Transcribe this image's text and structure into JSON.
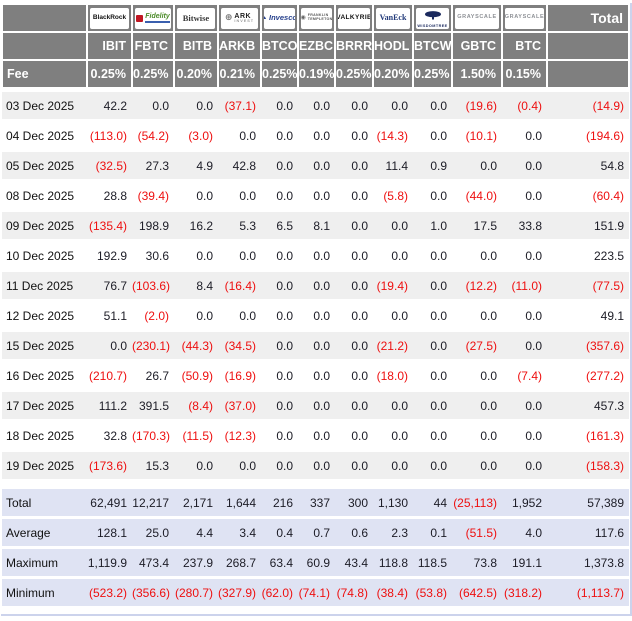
{
  "colors": {
    "header_bg": "#7f7f7f",
    "stripe_bg": "#efefef",
    "summary_bg": "#dfe3f3",
    "negative_text": "#ee0f0f",
    "positive_text": "#1c1c26"
  },
  "chart_data": {
    "type": "table",
    "total_header_label": "Total",
    "fee_row_label": "Fee",
    "issuers": [
      {
        "id": "blackrock",
        "lines": [
          "BlackRock"
        ]
      },
      {
        "id": "fidelity",
        "lines": [
          "Fidelity"
        ]
      },
      {
        "id": "bitwise",
        "lines": [
          "Bitwise"
        ]
      },
      {
        "id": "ark",
        "lines": [
          "ARK",
          "INVEST"
        ]
      },
      {
        "id": "invesco",
        "lines": [
          "Invesco"
        ]
      },
      {
        "id": "franklin",
        "lines": [
          "FRANKLIN",
          "TEMPLETON"
        ]
      },
      {
        "id": "valkyrie",
        "lines": [
          "VALKYRIE"
        ]
      },
      {
        "id": "vaneck",
        "lines": [
          "VanEck"
        ]
      },
      {
        "id": "wisdomtree",
        "lines": [
          "WISDOMTREE"
        ]
      },
      {
        "id": "grayscale",
        "lines": [
          "GRAYSCALE"
        ]
      },
      {
        "id": "grayscale2",
        "lines": [
          "GRAYSCALE"
        ]
      }
    ],
    "tickers": [
      "IBIT",
      "FBTC",
      "BITB",
      "ARKB",
      "BTCO",
      "EZBC",
      "BRRR",
      "HODL",
      "BTCW",
      "GBTC",
      "BTC"
    ],
    "fees": [
      "0.25%",
      "0.25%",
      "0.20%",
      "0.21%",
      "0.25%",
      "0.19%",
      "0.25%",
      "0.20%",
      "0.25%",
      "1.50%",
      "0.15%"
    ],
    "rows": [
      {
        "date": "03 Dec 2025",
        "values": [
          "42.2",
          "0.0",
          "0.0",
          "(37.1)",
          "0.0",
          "0.0",
          "0.0",
          "0.0",
          "0.0",
          "(19.6)",
          "(0.4)",
          "(14.9)"
        ]
      },
      {
        "date": "04 Dec 2025",
        "values": [
          "(113.0)",
          "(54.2)",
          "(3.0)",
          "0.0",
          "0.0",
          "0.0",
          "0.0",
          "(14.3)",
          "0.0",
          "(10.1)",
          "0.0",
          "(194.6)"
        ]
      },
      {
        "date": "05 Dec 2025",
        "values": [
          "(32.5)",
          "27.3",
          "4.9",
          "42.8",
          "0.0",
          "0.0",
          "0.0",
          "11.4",
          "0.9",
          "0.0",
          "0.0",
          "54.8"
        ]
      },
      {
        "date": "08 Dec 2025",
        "values": [
          "28.8",
          "(39.4)",
          "0.0",
          "0.0",
          "0.0",
          "0.0",
          "0.0",
          "(5.8)",
          "0.0",
          "(44.0)",
          "0.0",
          "(60.4)"
        ]
      },
      {
        "date": "09 Dec 2025",
        "values": [
          "(135.4)",
          "198.9",
          "16.2",
          "5.3",
          "6.5",
          "8.1",
          "0.0",
          "0.0",
          "1.0",
          "17.5",
          "33.8",
          "151.9"
        ]
      },
      {
        "date": "10 Dec 2025",
        "values": [
          "192.9",
          "30.6",
          "0.0",
          "0.0",
          "0.0",
          "0.0",
          "0.0",
          "0.0",
          "0.0",
          "0.0",
          "0.0",
          "223.5"
        ]
      },
      {
        "date": "11 Dec 2025",
        "values": [
          "76.7",
          "(103.6)",
          "8.4",
          "(16.4)",
          "0.0",
          "0.0",
          "0.0",
          "(19.4)",
          "0.0",
          "(12.2)",
          "(11.0)",
          "(77.5)"
        ]
      },
      {
        "date": "12 Dec 2025",
        "values": [
          "51.1",
          "(2.0)",
          "0.0",
          "0.0",
          "0.0",
          "0.0",
          "0.0",
          "0.0",
          "0.0",
          "0.0",
          "0.0",
          "49.1"
        ]
      },
      {
        "date": "15 Dec 2025",
        "values": [
          "0.0",
          "(230.1)",
          "(44.3)",
          "(34.5)",
          "0.0",
          "0.0",
          "0.0",
          "(21.2)",
          "0.0",
          "(27.5)",
          "0.0",
          "(357.6)"
        ]
      },
      {
        "date": "16 Dec 2025",
        "values": [
          "(210.7)",
          "26.7",
          "(50.9)",
          "(16.9)",
          "0.0",
          "0.0",
          "0.0",
          "(18.0)",
          "0.0",
          "0.0",
          "(7.4)",
          "(277.2)"
        ]
      },
      {
        "date": "17 Dec 2025",
        "values": [
          "111.2",
          "391.5",
          "(8.4)",
          "(37.0)",
          "0.0",
          "0.0",
          "0.0",
          "0.0",
          "0.0",
          "0.0",
          "0.0",
          "457.3"
        ]
      },
      {
        "date": "18 Dec 2025",
        "values": [
          "32.8",
          "(170.3)",
          "(11.5)",
          "(12.3)",
          "0.0",
          "0.0",
          "0.0",
          "0.0",
          "0.0",
          "0.0",
          "0.0",
          "(161.3)"
        ]
      },
      {
        "date": "19 Dec 2025",
        "values": [
          "(173.6)",
          "15.3",
          "0.0",
          "0.0",
          "0.0",
          "0.0",
          "0.0",
          "0.0",
          "0.0",
          "0.0",
          "0.0",
          "(158.3)"
        ]
      }
    ],
    "summary": [
      {
        "label": "Total",
        "values": [
          "62,491",
          "12,217",
          "2,171",
          "1,644",
          "216",
          "337",
          "300",
          "1,130",
          "44",
          "(25,113)",
          "1,952",
          "57,389"
        ]
      },
      {
        "label": "Average",
        "values": [
          "128.1",
          "25.0",
          "4.4",
          "3.4",
          "0.4",
          "0.7",
          "0.6",
          "2.3",
          "0.1",
          "(51.5)",
          "4.0",
          "117.6"
        ]
      },
      {
        "label": "Maximum",
        "values": [
          "1,119.9",
          "473.4",
          "237.9",
          "268.7",
          "63.4",
          "60.9",
          "43.4",
          "118.8",
          "118.5",
          "73.8",
          "191.1",
          "1,373.8"
        ]
      },
      {
        "label": "Minimum",
        "values": [
          "(523.2)",
          "(356.6)",
          "(280.7)",
          "(327.9)",
          "(62.0)",
          "(74.1)",
          "(74.8)",
          "(38.4)",
          "(53.8)",
          "(642.5)",
          "(318.2)",
          "(1,113.7)"
        ]
      }
    ]
  }
}
